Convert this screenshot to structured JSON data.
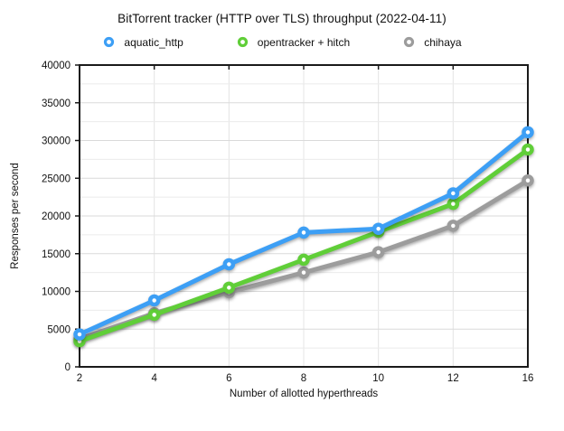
{
  "chart_data": {
    "type": "line",
    "title": "BitTorrent tracker (HTTP over TLS) throughput (2022-04-11)",
    "xlabel": "Number of allotted hyperthreads",
    "ylabel": "Responses per second",
    "categories": [
      "2",
      "4",
      "6",
      "8",
      "10",
      "12",
      "16"
    ],
    "series": [
      {
        "name": "aquatic_http",
        "color": "#3D9FF5",
        "values": [
          4300,
          8800,
          13600,
          17800,
          18300,
          23000,
          31100
        ]
      },
      {
        "name": "opentracker + hitch",
        "color": "#60CE38",
        "values": [
          3400,
          6900,
          10500,
          14200,
          17900,
          21600,
          28800
        ]
      },
      {
        "name": "chihaya",
        "color": "#9C9C9C",
        "values": [
          3700,
          7100,
          9900,
          12500,
          15200,
          18700,
          24700
        ]
      }
    ],
    "ylim": [
      0,
      40000
    ],
    "ytick_step": 5000,
    "yminor_step": 2500,
    "grid": "on",
    "legend_position": "top",
    "marker": "ring"
  },
  "colors": {
    "frame": "#1a1a1a",
    "grid_major": "#dadada",
    "grid_minor": "#ebebeb",
    "grid_vertical": "#e4e4e4"
  }
}
